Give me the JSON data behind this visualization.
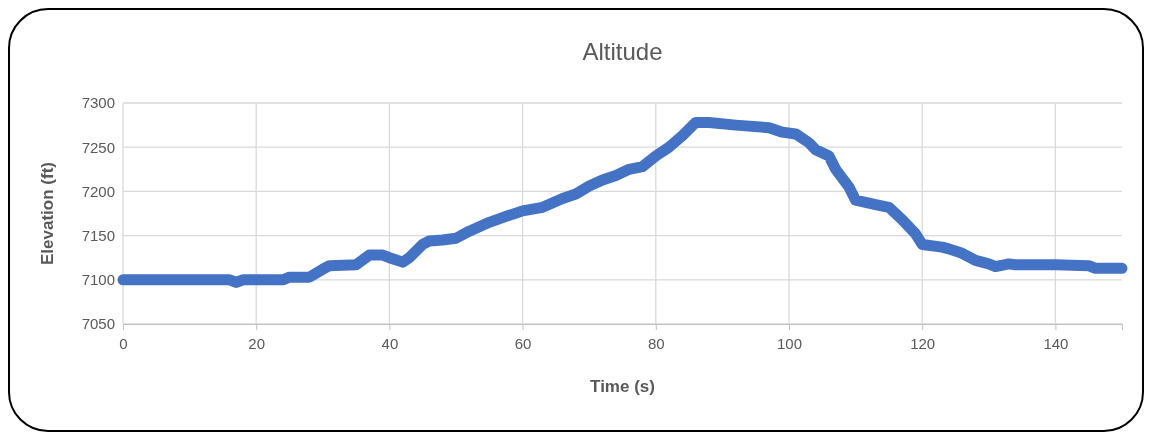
{
  "chart_data": {
    "type": "line",
    "title": "Altitude",
    "xlabel": "Time (s)",
    "ylabel": "Elevation (ft)",
    "xlim": [
      0,
      150
    ],
    "xticks": [
      0,
      20,
      40,
      60,
      80,
      100,
      120,
      140
    ],
    "ylim": [
      7050,
      7300
    ],
    "yticks": [
      7050,
      7100,
      7150,
      7200,
      7250,
      7300
    ],
    "grid": true,
    "line_style": "solid",
    "series": [
      {
        "color": "#4472c4",
        "x": [
          0,
          16,
          17,
          18,
          24,
          25,
          28,
          30,
          31,
          35,
          37,
          39,
          40,
          42,
          43,
          45,
          46,
          48,
          50,
          52,
          55,
          58,
          60,
          63,
          66,
          68,
          70,
          72,
          74,
          76,
          78,
          80,
          82,
          84,
          86,
          88,
          92,
          97,
          99,
          101,
          103,
          104,
          106,
          107,
          109,
          110,
          113,
          115,
          117,
          119,
          120,
          123,
          124,
          126,
          128,
          130,
          131,
          133,
          134,
          140,
          145,
          146,
          150
        ],
        "values": [
          7100,
          7100,
          7097,
          7100,
          7100,
          7103,
          7103,
          7112,
          7116,
          7117,
          7128,
          7128,
          7125,
          7120,
          7125,
          7140,
          7144,
          7145,
          7147,
          7155,
          7165,
          7173,
          7178,
          7182,
          7192,
          7197,
          7206,
          7213,
          7218,
          7225,
          7228,
          7240,
          7250,
          7263,
          7278,
          7278,
          7275,
          7272,
          7267,
          7265,
          7255,
          7247,
          7240,
          7225,
          7205,
          7190,
          7185,
          7182,
          7168,
          7152,
          7140,
          7137,
          7135,
          7130,
          7122,
          7118,
          7115,
          7118,
          7117,
          7117,
          7116,
          7113,
          7113
        ]
      }
    ]
  }
}
